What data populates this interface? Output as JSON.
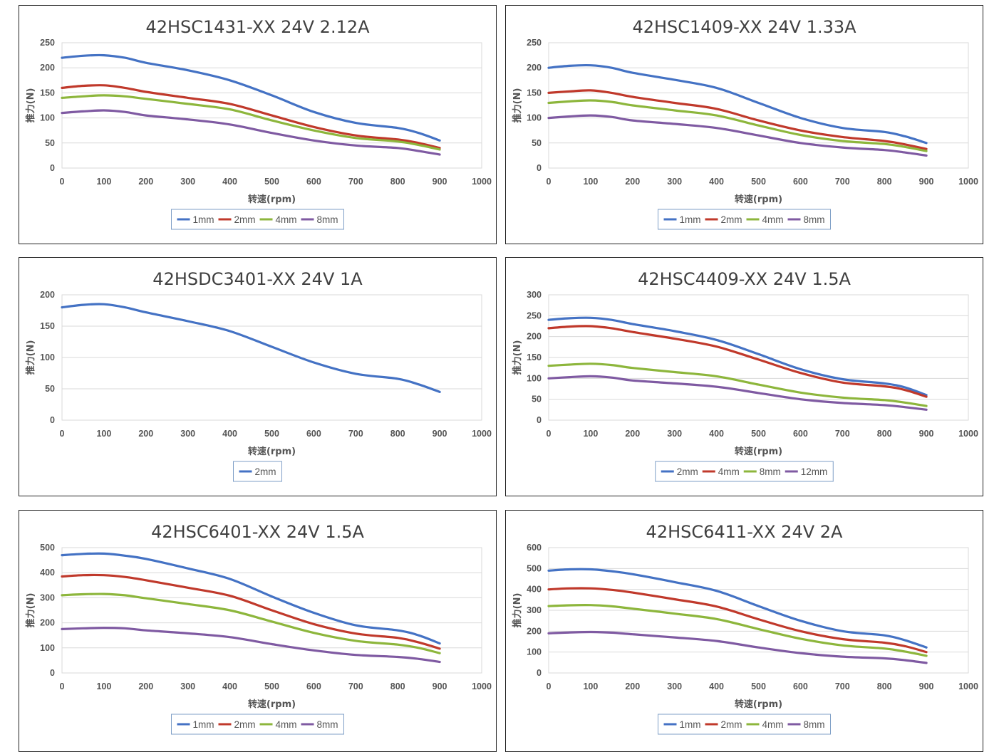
{
  "chart_data": [
    {
      "type": "line",
      "title": "42HSC1431-XX  24V  2.12A",
      "xlabel": "转速(rpm)",
      "ylabel": "推力(N)",
      "xlim": [
        0,
        1000
      ],
      "ylim": [
        0,
        250
      ],
      "x_ticks": [
        "0",
        "100",
        "200",
        "300",
        "400",
        "500",
        "600",
        "700",
        "800",
        "900",
        "1000"
      ],
      "y_ticks": [
        "0",
        "50",
        "100",
        "150",
        "200",
        "250"
      ],
      "grid": true,
      "legend": "bottom",
      "x": [
        0,
        50,
        100,
        150,
        200,
        300,
        400,
        500,
        600,
        700,
        800,
        850,
        900
      ],
      "series": [
        {
          "name": "1mm",
          "color": "#4472c4",
          "values": [
            220,
            224,
            225,
            220,
            210,
            195,
            175,
            145,
            112,
            90,
            80,
            70,
            55
          ]
        },
        {
          "name": "2mm",
          "color": "#c0392b",
          "values": [
            160,
            164,
            165,
            160,
            152,
            140,
            128,
            105,
            82,
            65,
            57,
            50,
            40
          ]
        },
        {
          "name": "4mm",
          "color": "#8db63c",
          "values": [
            140,
            143,
            145,
            143,
            138,
            128,
            117,
            95,
            75,
            60,
            53,
            46,
            37
          ]
        },
        {
          "name": "8mm",
          "color": "#7f5aa2",
          "values": [
            110,
            113,
            115,
            112,
            105,
            97,
            87,
            70,
            55,
            45,
            40,
            34,
            27
          ]
        }
      ]
    },
    {
      "type": "line",
      "title": "42HSC1409-XX  24V  1.33A",
      "xlabel": "转速(rpm)",
      "ylabel": "推力(N)",
      "xlim": [
        0,
        1000
      ],
      "ylim": [
        0,
        250
      ],
      "x_ticks": [
        "0",
        "100",
        "200",
        "300",
        "400",
        "500",
        "600",
        "700",
        "800",
        "900",
        "1000"
      ],
      "y_ticks": [
        "0",
        "50",
        "100",
        "150",
        "200",
        "250"
      ],
      "grid": true,
      "legend": "bottom",
      "x": [
        0,
        50,
        100,
        150,
        200,
        300,
        400,
        500,
        600,
        700,
        800,
        850,
        900
      ],
      "series": [
        {
          "name": "1mm",
          "color": "#4472c4",
          "values": [
            200,
            204,
            205,
            200,
            190,
            176,
            160,
            130,
            100,
            80,
            72,
            63,
            50
          ]
        },
        {
          "name": "2mm",
          "color": "#c0392b",
          "values": [
            150,
            153,
            155,
            150,
            142,
            130,
            118,
            95,
            75,
            62,
            54,
            47,
            38
          ]
        },
        {
          "name": "4mm",
          "color": "#8db63c",
          "values": [
            130,
            133,
            135,
            132,
            125,
            115,
            105,
            85,
            66,
            54,
            48,
            42,
            34
          ]
        },
        {
          "name": "8mm",
          "color": "#7f5aa2",
          "values": [
            100,
            103,
            105,
            102,
            95,
            88,
            80,
            65,
            50,
            41,
            36,
            31,
            25
          ]
        }
      ]
    },
    {
      "type": "line",
      "title": "42HSDC3401-XX  24V  1A",
      "xlabel": "转速(rpm)",
      "ylabel": "推力(N)",
      "xlim": [
        0,
        1000
      ],
      "ylim": [
        0,
        200
      ],
      "x_ticks": [
        "0",
        "100",
        "200",
        "300",
        "400",
        "500",
        "600",
        "700",
        "800",
        "900",
        "1000"
      ],
      "y_ticks": [
        "0",
        "50",
        "100",
        "150",
        "200"
      ],
      "grid": true,
      "legend": "bottom",
      "x": [
        0,
        50,
        100,
        150,
        200,
        300,
        400,
        500,
        600,
        700,
        800,
        850,
        900
      ],
      "series": [
        {
          "name": "2mm",
          "color": "#4472c4",
          "values": [
            180,
            184,
            185,
            180,
            172,
            158,
            142,
            117,
            92,
            74,
            66,
            57,
            45
          ]
        }
      ]
    },
    {
      "type": "line",
      "title": "42HSC4409-XX  24V  1.5A",
      "xlabel": "转速(rpm)",
      "ylabel": "推力(N)",
      "xlim": [
        0,
        1000
      ],
      "ylim": [
        0,
        300
      ],
      "x_ticks": [
        "0",
        "100",
        "200",
        "300",
        "400",
        "500",
        "600",
        "700",
        "800",
        "900",
        "1000"
      ],
      "y_ticks": [
        "0",
        "50",
        "100",
        "150",
        "200",
        "250",
        "300"
      ],
      "grid": true,
      "legend": "bottom",
      "x": [
        0,
        50,
        100,
        150,
        200,
        300,
        400,
        500,
        600,
        700,
        800,
        850,
        900
      ],
      "series": [
        {
          "name": "2mm",
          "color": "#4472c4",
          "values": [
            240,
            244,
            245,
            240,
            230,
            213,
            192,
            158,
            122,
            98,
            88,
            78,
            60
          ]
        },
        {
          "name": "4mm",
          "color": "#c0392b",
          "values": [
            220,
            224,
            225,
            220,
            211,
            195,
            176,
            145,
            113,
            90,
            81,
            72,
            56
          ]
        },
        {
          "name": "8mm",
          "color": "#8db63c",
          "values": [
            130,
            133,
            135,
            132,
            125,
            115,
            105,
            85,
            66,
            54,
            48,
            42,
            34
          ]
        },
        {
          "name": "12mm",
          "color": "#7f5aa2",
          "values": [
            100,
            103,
            105,
            102,
            95,
            88,
            80,
            65,
            50,
            41,
            36,
            31,
            25
          ]
        }
      ]
    },
    {
      "type": "line",
      "title": "42HSC6401-XX  24V  1.5A",
      "xlabel": "转速(rpm)",
      "ylabel": "推力(N)",
      "xlim": [
        0,
        1000
      ],
      "ylim": [
        0,
        500
      ],
      "x_ticks": [
        "0",
        "100",
        "200",
        "300",
        "400",
        "500",
        "600",
        "700",
        "800",
        "900",
        "1000"
      ],
      "y_ticks": [
        "0",
        "100",
        "200",
        "300",
        "400",
        "500"
      ],
      "grid": true,
      "legend": "bottom",
      "x": [
        0,
        50,
        100,
        150,
        200,
        300,
        400,
        500,
        600,
        700,
        800,
        850,
        900
      ],
      "series": [
        {
          "name": "1mm",
          "color": "#4472c4",
          "values": [
            470,
            475,
            476,
            468,
            455,
            417,
            375,
            305,
            240,
            190,
            170,
            150,
            118
          ]
        },
        {
          "name": "2mm",
          "color": "#c0392b",
          "values": [
            385,
            390,
            390,
            383,
            370,
            340,
            308,
            250,
            195,
            157,
            140,
            122,
            97
          ]
        },
        {
          "name": "4mm",
          "color": "#8db63c",
          "values": [
            310,
            314,
            315,
            310,
            298,
            275,
            250,
            205,
            160,
            128,
            113,
            100,
            79
          ]
        },
        {
          "name": "8mm",
          "color": "#7f5aa2",
          "values": [
            175,
            178,
            180,
            178,
            170,
            158,
            143,
            115,
            90,
            72,
            64,
            56,
            44
          ]
        }
      ]
    },
    {
      "type": "line",
      "title": "42HSC6411-XX  24V  2A",
      "xlabel": "转速(rpm)",
      "ylabel": "推力(N)",
      "xlim": [
        0,
        1000
      ],
      "ylim": [
        0,
        600
      ],
      "x_ticks": [
        "0",
        "100",
        "200",
        "300",
        "400",
        "500",
        "600",
        "700",
        "800",
        "900",
        "1000"
      ],
      "y_ticks": [
        "0",
        "100",
        "200",
        "300",
        "400",
        "500",
        "600"
      ],
      "grid": true,
      "legend": "bottom",
      "x": [
        0,
        50,
        100,
        150,
        200,
        300,
        400,
        500,
        600,
        700,
        800,
        850,
        900
      ],
      "series": [
        {
          "name": "1mm",
          "color": "#4472c4",
          "values": [
            490,
            496,
            496,
            487,
            473,
            435,
            393,
            320,
            250,
            200,
            180,
            156,
            122
          ]
        },
        {
          "name": "2mm",
          "color": "#c0392b",
          "values": [
            400,
            405,
            405,
            398,
            385,
            353,
            318,
            257,
            200,
            162,
            145,
            128,
            100
          ]
        },
        {
          "name": "4mm",
          "color": "#8db63c",
          "values": [
            320,
            324,
            325,
            319,
            308,
            284,
            258,
            210,
            164,
            132,
            117,
            102,
            82
          ]
        },
        {
          "name": "8mm",
          "color": "#7f5aa2",
          "values": [
            190,
            194,
            196,
            193,
            185,
            170,
            153,
            122,
            95,
            78,
            70,
            61,
            48
          ]
        }
      ]
    }
  ]
}
